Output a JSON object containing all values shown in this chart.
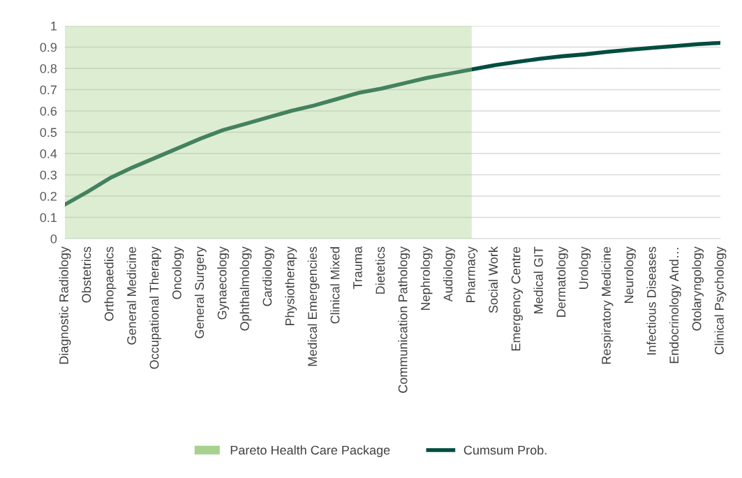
{
  "chart_data": {
    "type": "line",
    "categories": [
      "Diagnostic Radiology",
      "Obstetrics",
      "Orthopaedics",
      "General Medicine",
      "Occupational Therapy",
      "Oncology",
      "General Surgery",
      "Gynaecology",
      "Ophthalmology",
      "Cardiology",
      "Physiotherapy",
      "Medical Emergencies",
      "Clinical Mixed",
      "Trauma",
      "Dietetics",
      "Communication Pathology",
      "Nephrology",
      "Audiology",
      "Pharmacy",
      "Social Work",
      "Emergency Centre",
      "Medical GIT",
      "Dermatology",
      "Urology",
      "Respiratory Medicine",
      "Neurology",
      "Infectious Diseases",
      "Endocrinology And…",
      "Otolaryngology",
      "Clinical Psychology"
    ],
    "series": [
      {
        "name": "Pareto Health Care Package",
        "type": "area",
        "color": "#a9d18e",
        "values": [
          1,
          1,
          1,
          1,
          1,
          1,
          1,
          1,
          1,
          1,
          1,
          1,
          1,
          1,
          1,
          1,
          1,
          1,
          1,
          null,
          null,
          null,
          null,
          null,
          null,
          null,
          null,
          null,
          null,
          null
        ]
      },
      {
        "name": "Cumsum Prob.",
        "color": "#004d40",
        "values": [
          0.16,
          0.22,
          0.285,
          0.335,
          0.38,
          0.425,
          0.47,
          0.51,
          0.54,
          0.57,
          0.6,
          0.625,
          0.655,
          0.685,
          0.705,
          0.73,
          0.755,
          0.775,
          0.795,
          0.815,
          0.83,
          0.845,
          0.857,
          0.866,
          0.878,
          0.888,
          0.897,
          0.905,
          0.914,
          0.92
        ]
      }
    ],
    "ylim": [
      0,
      1
    ],
    "yticks": [
      0,
      0.1,
      0.2,
      0.3,
      0.4,
      0.5,
      0.6,
      0.7,
      0.8,
      0.9,
      1
    ],
    "grid": "y",
    "legend": "bottom",
    "marker": "none",
    "line_style": "solid"
  }
}
